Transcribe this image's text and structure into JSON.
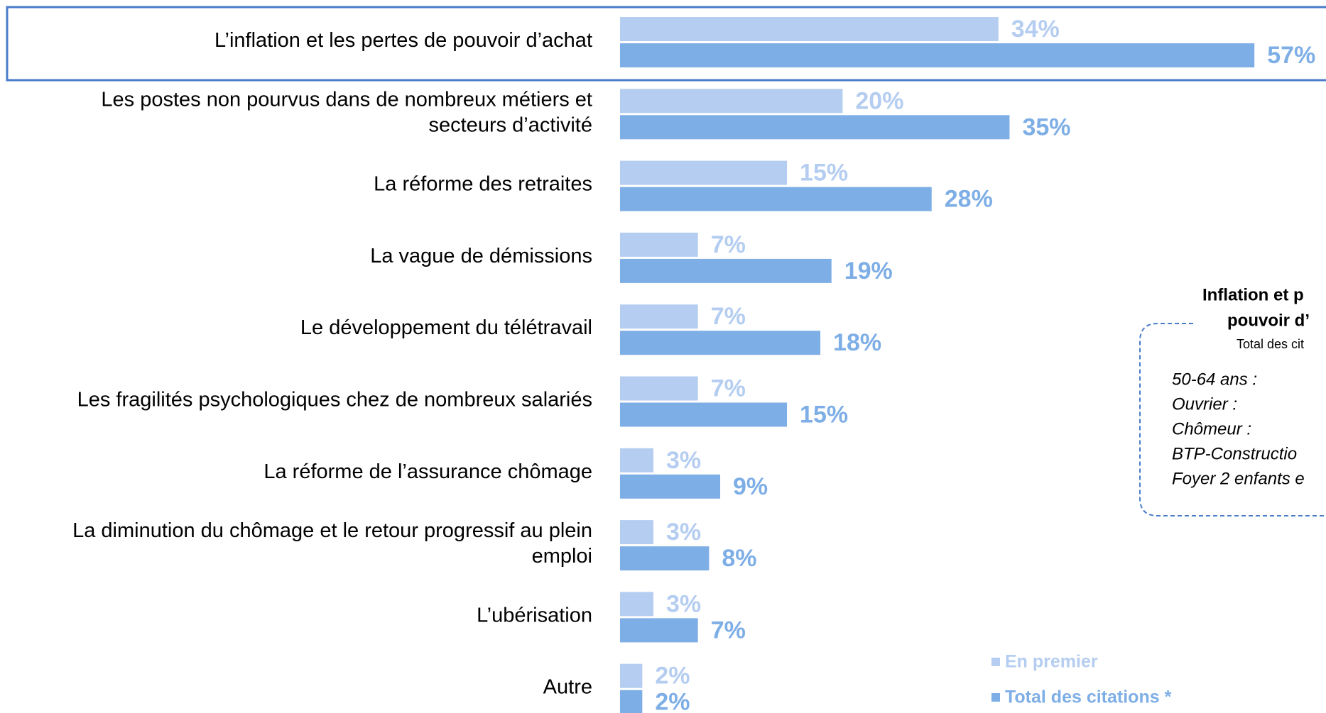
{
  "chart_data": {
    "type": "bar",
    "orientation": "horizontal",
    "categories": [
      "L’inflation et les pertes de pouvoir d’achat",
      "Les postes non pourvus dans de nombreux métiers et\nsecteurs d’activité",
      "La réforme des retraites",
      "La vague de démissions",
      "Le développement du télétravail",
      "Les fragilités psychologiques chez de nombreux salariés",
      "La réforme de l’assurance chômage",
      "La diminution du chômage et le retour progressif au plein\nemploi",
      "L’ubérisation",
      "Autre"
    ],
    "series": [
      {
        "name": "En premier",
        "color": "#b4cdf0",
        "values": [
          34,
          20,
          15,
          7,
          7,
          7,
          3,
          3,
          3,
          2
        ],
        "value_labels": [
          "34%",
          "20%",
          "15%",
          "7%",
          "7%",
          "7%",
          "3%",
          "3%",
          "3%",
          "2%"
        ]
      },
      {
        "name": "Total des citations *",
        "color": "#7eaee6",
        "values": [
          57,
          35,
          28,
          19,
          18,
          15,
          9,
          8,
          7,
          2
        ],
        "value_labels": [
          "57%",
          "35%",
          "28%",
          "19%",
          "18%",
          "15%",
          "9%",
          "8%",
          "7%",
          "2%"
        ]
      }
    ],
    "inset": {
      "title": [
        "Inflation et p",
        "pouvoir d’"
      ],
      "subtitle": "Total des cit",
      "items": [
        "50-64 ans :",
        "Ouvrier :",
        "Chômeur :",
        "BTP-Constructio",
        "Foyer 2 enfants e"
      ]
    }
  }
}
